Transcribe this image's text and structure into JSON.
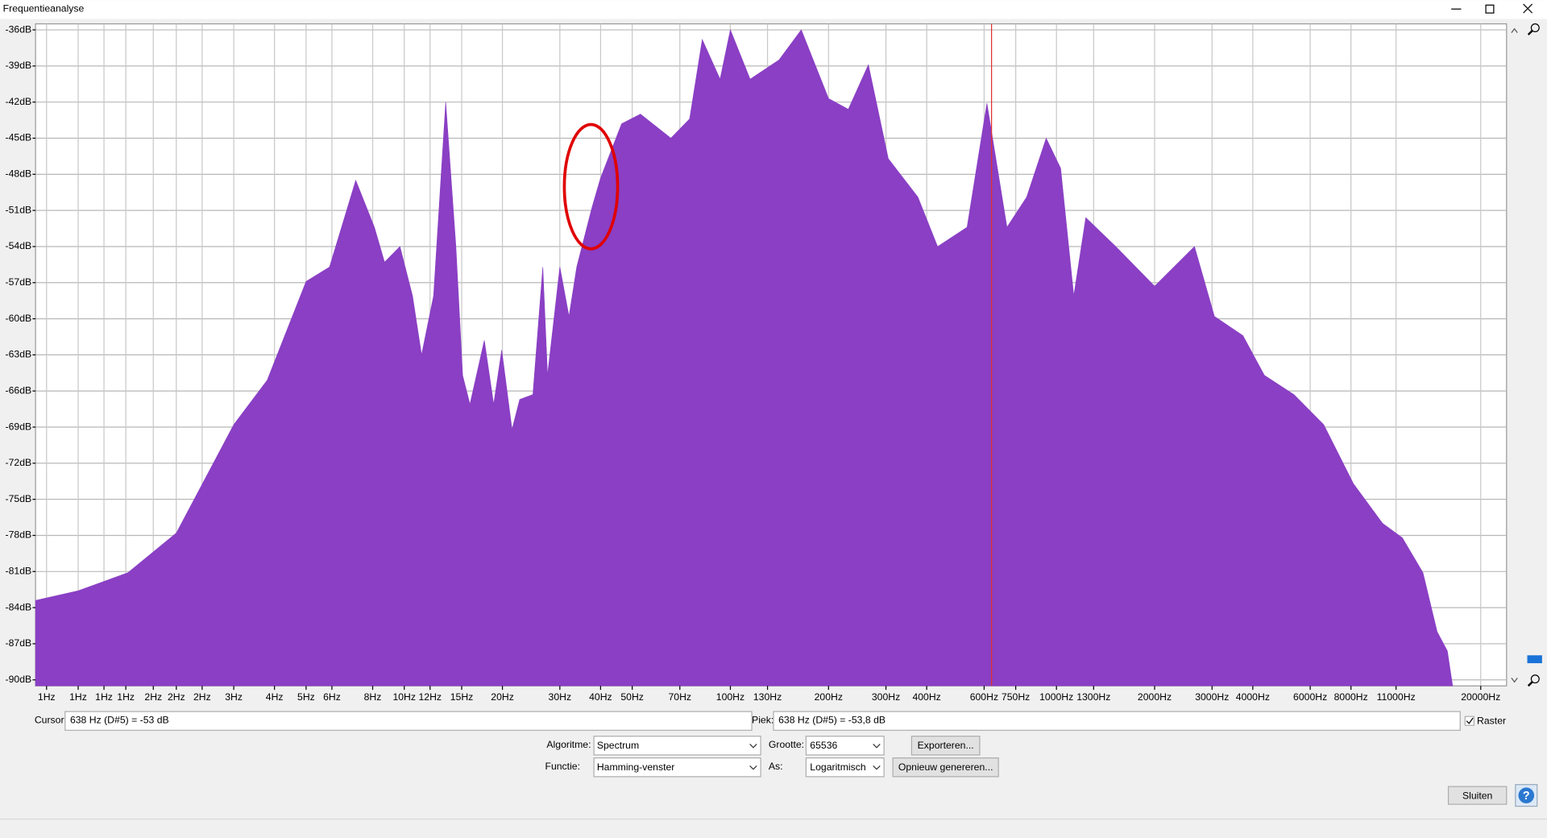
{
  "window": {
    "title": "Frequentieanalyse"
  },
  "chart_data": {
    "type": "area",
    "color": "#8a3fc4",
    "xlog": true,
    "grid": true,
    "x": [
      0.74,
      1,
      1.42,
      2,
      3,
      3.8,
      5,
      5.9,
      7.1,
      8.1,
      8.7,
      9.7,
      10.6,
      11.3,
      12.3,
      13.4,
      14.4,
      15.1,
      15.9,
      17.6,
      18.8,
      19.9,
      21.4,
      22.6,
      24.8,
      26.6,
      27.5,
      30,
      32,
      33.8,
      37.6,
      40,
      46.4,
      53,
      65.7,
      75,
      82,
      93,
      100,
      115,
      141,
      165,
      200,
      230,
      265,
      305,
      376,
      432,
      532,
      612,
      705,
      810,
      930,
      1030,
      1130,
      1230,
      1520,
      2000,
      2650,
      3050,
      3730,
      4340,
      5350,
      6600,
      8140,
      10000,
      11500,
      13300,
      14700,
      15800,
      16400
    ],
    "values": [
      -83.4,
      -82.6,
      -81.1,
      -77.8,
      -68.8,
      -65.1,
      -56.9,
      -55.7,
      -48.5,
      -52.4,
      -55.3,
      -54.0,
      -58.1,
      -63.0,
      -58.1,
      -42.0,
      -54.0,
      -64.7,
      -67.1,
      -61.8,
      -67.1,
      -62.6,
      -69.2,
      -66.7,
      -66.3,
      -55.7,
      -64.7,
      -55.7,
      -59.8,
      -55.7,
      -50.8,
      -48.3,
      -43.8,
      -43.0,
      -45.0,
      -43.4,
      -36.8,
      -40.1,
      -36.0,
      -40.1,
      -38.5,
      -36.0,
      -41.7,
      -42.6,
      -38.9,
      -46.7,
      -49.9,
      -54.0,
      -52.4,
      -42.1,
      -52.4,
      -49.9,
      -45.0,
      -47.5,
      -58.1,
      -51.6,
      -54.0,
      -57.3,
      -54.0,
      -59.8,
      -61.4,
      -64.7,
      -66.3,
      -68.8,
      -73.7,
      -77.0,
      -78.2,
      -81.1,
      -86.0,
      -87.6,
      -90.5
    ],
    "xlim": [
      0.74,
      24000
    ],
    "ylim": [
      -90.5,
      -35.5
    ],
    "xticks": [
      {
        "value": 0.8,
        "label": "1Hz"
      },
      {
        "value": 1,
        "label": "1Hz"
      },
      {
        "value": 1.2,
        "label": "1Hz"
      },
      {
        "value": 1.4,
        "label": "1Hz"
      },
      {
        "value": 1.7,
        "label": "2Hz"
      },
      {
        "value": 2,
        "label": "2Hz"
      },
      {
        "value": 2.4,
        "label": "2Hz"
      },
      {
        "value": 3,
        "label": "3Hz"
      },
      {
        "value": 4,
        "label": "4Hz"
      },
      {
        "value": 5,
        "label": "5Hz"
      },
      {
        "value": 6,
        "label": "6Hz"
      },
      {
        "value": 8,
        "label": "8Hz"
      },
      {
        "value": 10,
        "label": "10Hz"
      },
      {
        "value": 12,
        "label": "12Hz"
      },
      {
        "value": 15,
        "label": "15Hz"
      },
      {
        "value": 20,
        "label": "20Hz"
      },
      {
        "value": 30,
        "label": "30Hz"
      },
      {
        "value": 40,
        "label": "40Hz"
      },
      {
        "value": 50,
        "label": "50Hz"
      },
      {
        "value": 70,
        "label": "70Hz"
      },
      {
        "value": 100,
        "label": "100Hz"
      },
      {
        "value": 130,
        "label": "130Hz"
      },
      {
        "value": 200,
        "label": "200Hz"
      },
      {
        "value": 300,
        "label": "300Hz"
      },
      {
        "value": 400,
        "label": "400Hz"
      },
      {
        "value": 600,
        "label": "600Hz"
      },
      {
        "value": 750,
        "label": "750Hz"
      },
      {
        "value": 1000,
        "label": "1000Hz"
      },
      {
        "value": 1300,
        "label": "1300Hz"
      },
      {
        "value": 2000,
        "label": "2000Hz"
      },
      {
        "value": 3000,
        "label": "3000Hz"
      },
      {
        "value": 4000,
        "label": "4000Hz"
      },
      {
        "value": 6000,
        "label": "6000Hz"
      },
      {
        "value": 8000,
        "label": "8000Hz"
      },
      {
        "value": 11000,
        "label": "11000Hz"
      },
      {
        "value": 20000,
        "label": "20000Hz"
      }
    ],
    "yticks": [
      {
        "value": -36,
        "label": "-36dB"
      },
      {
        "value": -39,
        "label": "-39dB"
      },
      {
        "value": -42,
        "label": "-42dB"
      },
      {
        "value": -45,
        "label": "-45dB"
      },
      {
        "value": -48,
        "label": "-48dB"
      },
      {
        "value": -51,
        "label": "-51dB"
      },
      {
        "value": -54,
        "label": "-54dB"
      },
      {
        "value": -57,
        "label": "-57dB"
      },
      {
        "value": -60,
        "label": "-60dB"
      },
      {
        "value": -63,
        "label": "-63dB"
      },
      {
        "value": -66,
        "label": "-66dB"
      },
      {
        "value": -69,
        "label": "-69dB"
      },
      {
        "value": -72,
        "label": "-72dB"
      },
      {
        "value": -75,
        "label": "-75dB"
      },
      {
        "value": -78,
        "label": "-78dB"
      },
      {
        "value": -81,
        "label": "-81dB"
      },
      {
        "value": -84,
        "label": "-84dB"
      },
      {
        "value": -87,
        "label": "-87dB"
      },
      {
        "value": -90,
        "label": "-90dB"
      }
    ]
  },
  "controls": {
    "cursor_label": "Cursor:",
    "cursor_value": "638 Hz (D#5) = -53 dB",
    "peak_label": "Piek:",
    "peak_value": "638 Hz (D#5) = -53,8 dB",
    "grid_checkbox": "Raster",
    "algorithm_label": "Algoritme:",
    "algorithm": "Spectrum",
    "size_label": "Grootte:",
    "size": "65536",
    "export": "Exporteren...",
    "function_label": "Functie:",
    "function": "Hamming-venster",
    "axis_label": "As:",
    "axis": "Logaritmisch",
    "regenerate": "Opnieuw genereren...",
    "close": "Sluiten",
    "help": "?"
  }
}
